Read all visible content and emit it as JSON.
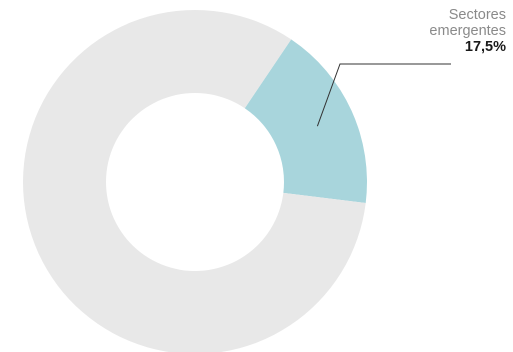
{
  "chart_data": {
    "type": "pie",
    "variant": "donut",
    "slices": [
      {
        "label": "Sectores emergentes",
        "value": 17.5,
        "display": "17,5%",
        "color": "#a8d5dc"
      },
      {
        "label": "",
        "value": 82.5,
        "color": "#e8e8e8"
      }
    ],
    "annotation": {
      "line1": "Sectores",
      "line2": "emergentes",
      "value": "17,5%"
    },
    "legend": "none"
  }
}
